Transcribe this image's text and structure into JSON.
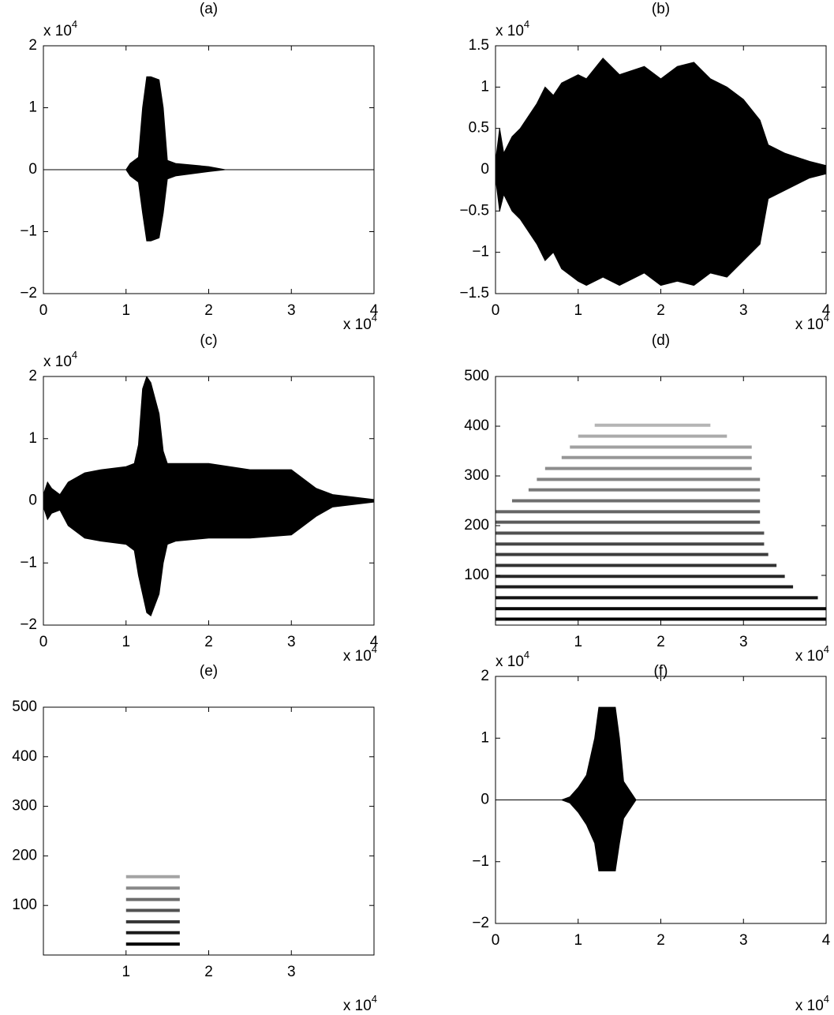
{
  "chart_data": [
    {
      "type": "envelope",
      "title": "(a)",
      "x_multiplier": "x 10",
      "x_multiplier_power": "4",
      "y_multiplier": "x 10",
      "y_multiplier_power": "4",
      "xlim": [
        0,
        4
      ],
      "ylim": [
        -2,
        2
      ],
      "xticks": [
        0,
        1,
        2,
        3,
        4
      ],
      "yticks": [
        {
          "value": -2,
          "label": "−2"
        },
        {
          "value": -1,
          "label": "−1"
        },
        0,
        1,
        2
      ],
      "x": [
        0,
        1.0,
        1.05,
        1.15,
        1.2,
        1.25,
        1.3,
        1.4,
        1.45,
        1.5,
        1.6,
        2.0,
        2.2,
        4
      ],
      "y_upper": [
        0,
        0,
        0.1,
        0.2,
        1.0,
        1.5,
        1.5,
        1.45,
        1.0,
        0.15,
        0.1,
        0.05,
        0,
        0
      ],
      "y_lower": [
        0,
        0,
        -0.1,
        -0.2,
        -0.7,
        -1.15,
        -1.15,
        -1.1,
        -0.7,
        -0.15,
        -0.1,
        -0.03,
        0,
        0
      ]
    },
    {
      "type": "envelope",
      "title": "(b)",
      "x_multiplier": "x 10",
      "x_multiplier_power": "4",
      "y_multiplier": "x 10",
      "y_multiplier_power": "4",
      "xlim": [
        0,
        4
      ],
      "ylim": [
        -1.5,
        1.5
      ],
      "xticks": [
        0,
        1,
        2,
        3,
        4
      ],
      "yticks": [
        {
          "value": -1.5,
          "label": "−1.5"
        },
        {
          "value": -1,
          "label": "−1"
        },
        {
          "value": -0.5,
          "label": "−0.5"
        },
        0,
        0.5,
        1,
        1.5
      ],
      "x": [
        0,
        0.05,
        0.1,
        0.2,
        0.3,
        0.5,
        0.6,
        0.7,
        0.8,
        1.0,
        1.1,
        1.3,
        1.5,
        1.8,
        2.0,
        2.2,
        2.4,
        2.6,
        2.8,
        3.0,
        3.2,
        3.3,
        3.5,
        3.8,
        4
      ],
      "y_upper": [
        0.1,
        0.5,
        0.2,
        0.4,
        0.5,
        0.8,
        1.0,
        0.9,
        1.05,
        1.15,
        1.1,
        1.35,
        1.15,
        1.25,
        1.1,
        1.25,
        1.3,
        1.1,
        1.0,
        0.85,
        0.6,
        0.3,
        0.2,
        0.1,
        0.05
      ],
      "y_lower": [
        -0.1,
        -0.5,
        -0.3,
        -0.5,
        -0.6,
        -0.9,
        -1.1,
        -1.0,
        -1.2,
        -1.35,
        -1.4,
        -1.3,
        -1.4,
        -1.25,
        -1.4,
        -1.35,
        -1.4,
        -1.25,
        -1.3,
        -1.1,
        -0.9,
        -0.35,
        -0.25,
        -0.1,
        -0.05
      ]
    },
    {
      "type": "envelope",
      "title": "(c)",
      "x_multiplier": "x 10",
      "x_multiplier_power": "4",
      "y_multiplier": "x 10",
      "y_multiplier_power": "4",
      "xlim": [
        0,
        4
      ],
      "ylim": [
        -2,
        2
      ],
      "xticks": [
        0,
        1,
        2,
        3,
        4
      ],
      "yticks": [
        {
          "value": -2,
          "label": "−2"
        },
        {
          "value": -1,
          "label": "−1"
        },
        0,
        1,
        2
      ],
      "x": [
        0,
        0.05,
        0.1,
        0.2,
        0.3,
        0.5,
        0.7,
        1.0,
        1.1,
        1.15,
        1.2,
        1.25,
        1.3,
        1.4,
        1.45,
        1.5,
        1.6,
        2.0,
        2.5,
        3.0,
        3.3,
        3.5,
        4
      ],
      "y_upper": [
        0.1,
        0.3,
        0.2,
        0.1,
        0.3,
        0.45,
        0.5,
        0.55,
        0.6,
        0.9,
        1.8,
        2.0,
        1.9,
        1.4,
        0.8,
        0.6,
        0.6,
        0.6,
        0.5,
        0.5,
        0.2,
        0.1,
        0.02
      ],
      "y_lower": [
        -0.1,
        -0.3,
        -0.2,
        -0.15,
        -0.4,
        -0.6,
        -0.65,
        -0.7,
        -0.8,
        -1.2,
        -1.5,
        -1.8,
        -1.85,
        -1.5,
        -1.0,
        -0.7,
        -0.65,
        -0.6,
        -0.6,
        -0.55,
        -0.25,
        -0.1,
        -0.02
      ]
    },
    {
      "type": "spectrogram",
      "title": "(d)",
      "x_multiplier": "x 10",
      "x_multiplier_power": "4",
      "xlim": [
        0,
        4
      ],
      "ylim": [
        0,
        500
      ],
      "xticks": [
        1,
        2,
        3
      ],
      "yticks": [
        100,
        200,
        300,
        400,
        500
      ],
      "bands": [
        {
          "y": 12,
          "x_start": 0,
          "x_end": 4
        },
        {
          "y": 33,
          "x_start": 0,
          "x_end": 4
        },
        {
          "y": 55,
          "x_start": 0,
          "x_end": 3.9
        },
        {
          "y": 77,
          "x_start": 0,
          "x_end": 3.6
        },
        {
          "y": 98,
          "x_start": 0,
          "x_end": 3.5
        },
        {
          "y": 120,
          "x_start": 0,
          "x_end": 3.4
        },
        {
          "y": 142,
          "x_start": 0,
          "x_end": 3.3
        },
        {
          "y": 163,
          "x_start": 0,
          "x_end": 3.25
        },
        {
          "y": 185,
          "x_start": 0,
          "x_end": 3.25
        },
        {
          "y": 207,
          "x_start": 0,
          "x_end": 3.2
        },
        {
          "y": 228,
          "x_start": 0,
          "x_end": 3.2
        },
        {
          "y": 250,
          "x_start": 0.2,
          "x_end": 3.2
        },
        {
          "y": 272,
          "x_start": 0.4,
          "x_end": 3.2
        },
        {
          "y": 293,
          "x_start": 0.5,
          "x_end": 3.2
        },
        {
          "y": 315,
          "x_start": 0.6,
          "x_end": 3.1
        },
        {
          "y": 337,
          "x_start": 0.8,
          "x_end": 3.1
        },
        {
          "y": 358,
          "x_start": 0.9,
          "x_end": 3.1
        },
        {
          "y": 380,
          "x_start": 1.0,
          "x_end": 2.8
        },
        {
          "y": 402,
          "x_start": 1.2,
          "x_end": 2.6
        }
      ]
    },
    {
      "type": "spectrogram",
      "title": "(e)",
      "x_multiplier": "x 10",
      "x_multiplier_power": "4",
      "xlim": [
        0,
        4
      ],
      "ylim": [
        0,
        500
      ],
      "xticks": [
        1,
        2,
        3
      ],
      "yticks": [
        100,
        200,
        300,
        400,
        500
      ],
      "bands": [
        {
          "y": 22,
          "x_start": 1.0,
          "x_end": 1.65
        },
        {
          "y": 45,
          "x_start": 1.0,
          "x_end": 1.65
        },
        {
          "y": 67,
          "x_start": 1.0,
          "x_end": 1.65
        },
        {
          "y": 90,
          "x_start": 1.0,
          "x_end": 1.65
        },
        {
          "y": 112,
          "x_start": 1.0,
          "x_end": 1.65
        },
        {
          "y": 135,
          "x_start": 1.0,
          "x_end": 1.65
        },
        {
          "y": 158,
          "x_start": 1.0,
          "x_end": 1.65
        }
      ]
    },
    {
      "type": "envelope",
      "title": "(f)",
      "x_multiplier": "x 10",
      "x_multiplier_power": "4",
      "y_multiplier": "x 10",
      "y_multiplier_power": "4",
      "xlim": [
        0,
        4
      ],
      "ylim": [
        -2,
        2
      ],
      "xticks": [
        0,
        1,
        2,
        3,
        4
      ],
      "yticks": [
        {
          "value": -2,
          "label": "−2"
        },
        {
          "value": -1,
          "label": "−1"
        },
        0,
        1,
        2
      ],
      "x": [
        0,
        0.8,
        0.9,
        1.0,
        1.1,
        1.2,
        1.25,
        1.45,
        1.5,
        1.55,
        1.6,
        1.7,
        4
      ],
      "y_upper": [
        0,
        0,
        0.05,
        0.2,
        0.4,
        1.0,
        1.5,
        1.5,
        1.0,
        0.3,
        0.2,
        0,
        0
      ],
      "y_lower": [
        0,
        0,
        -0.05,
        -0.2,
        -0.4,
        -0.7,
        -1.15,
        -1.15,
        -0.7,
        -0.3,
        -0.2,
        0,
        0
      ]
    }
  ]
}
